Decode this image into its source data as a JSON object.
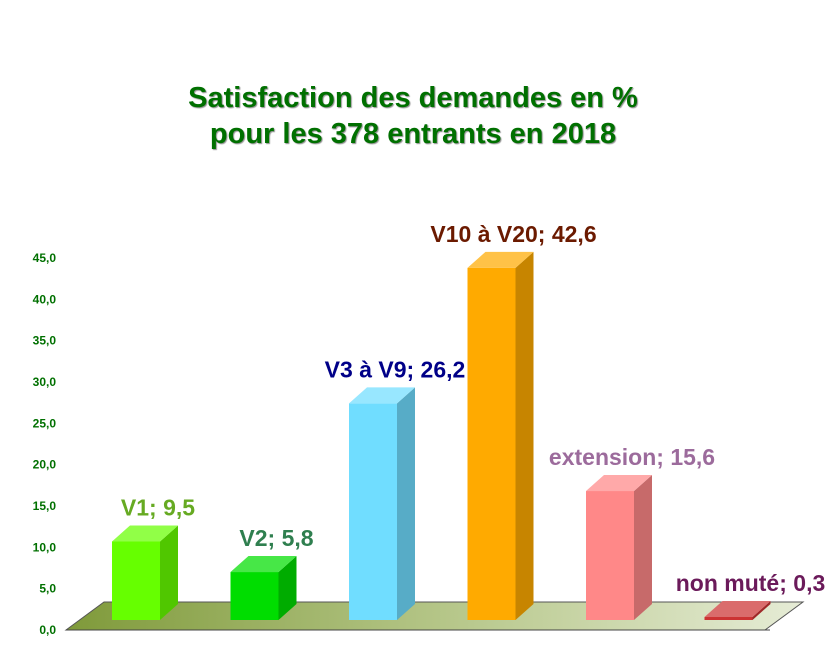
{
  "chart_data": {
    "type": "bar",
    "title_lines": [
      "Satisfaction des demandes en %",
      "pour les 378 entrants en 2018"
    ],
    "categories": [
      "V1",
      "V2",
      "V3 à V9",
      "V10 à V20",
      "extension",
      "non muté"
    ],
    "values": [
      9.5,
      5.8,
      26.2,
      42.6,
      15.6,
      0.3
    ],
    "data_labels": [
      "V1; 9,5",
      "V2; 5,8",
      "V3 à V9; 26,2",
      "V10 à V20; 42,6",
      "extension; 15,6",
      "non muté; 0,3"
    ],
    "y_ticks": [
      "0,0",
      "5,0",
      "10,0",
      "15,0",
      "20,0",
      "25,0",
      "30,0",
      "35,0",
      "40,0",
      "45,0"
    ],
    "ylim": [
      0,
      45
    ],
    "xlabel": "",
    "ylabel": "",
    "grid": false,
    "legend": "none",
    "style": "3d-column",
    "colors": {
      "bars": [
        "#66ff00",
        "#00dd00",
        "#70ddff",
        "#ffaa00",
        "#ff8888",
        "#cc3333"
      ],
      "labels": [
        "#66aa22",
        "#2f7f4f",
        "#000088",
        "#6b1a00",
        "#9c6b9c",
        "#6b1a5a"
      ],
      "title": "#007000",
      "ticks": "#007000"
    }
  }
}
